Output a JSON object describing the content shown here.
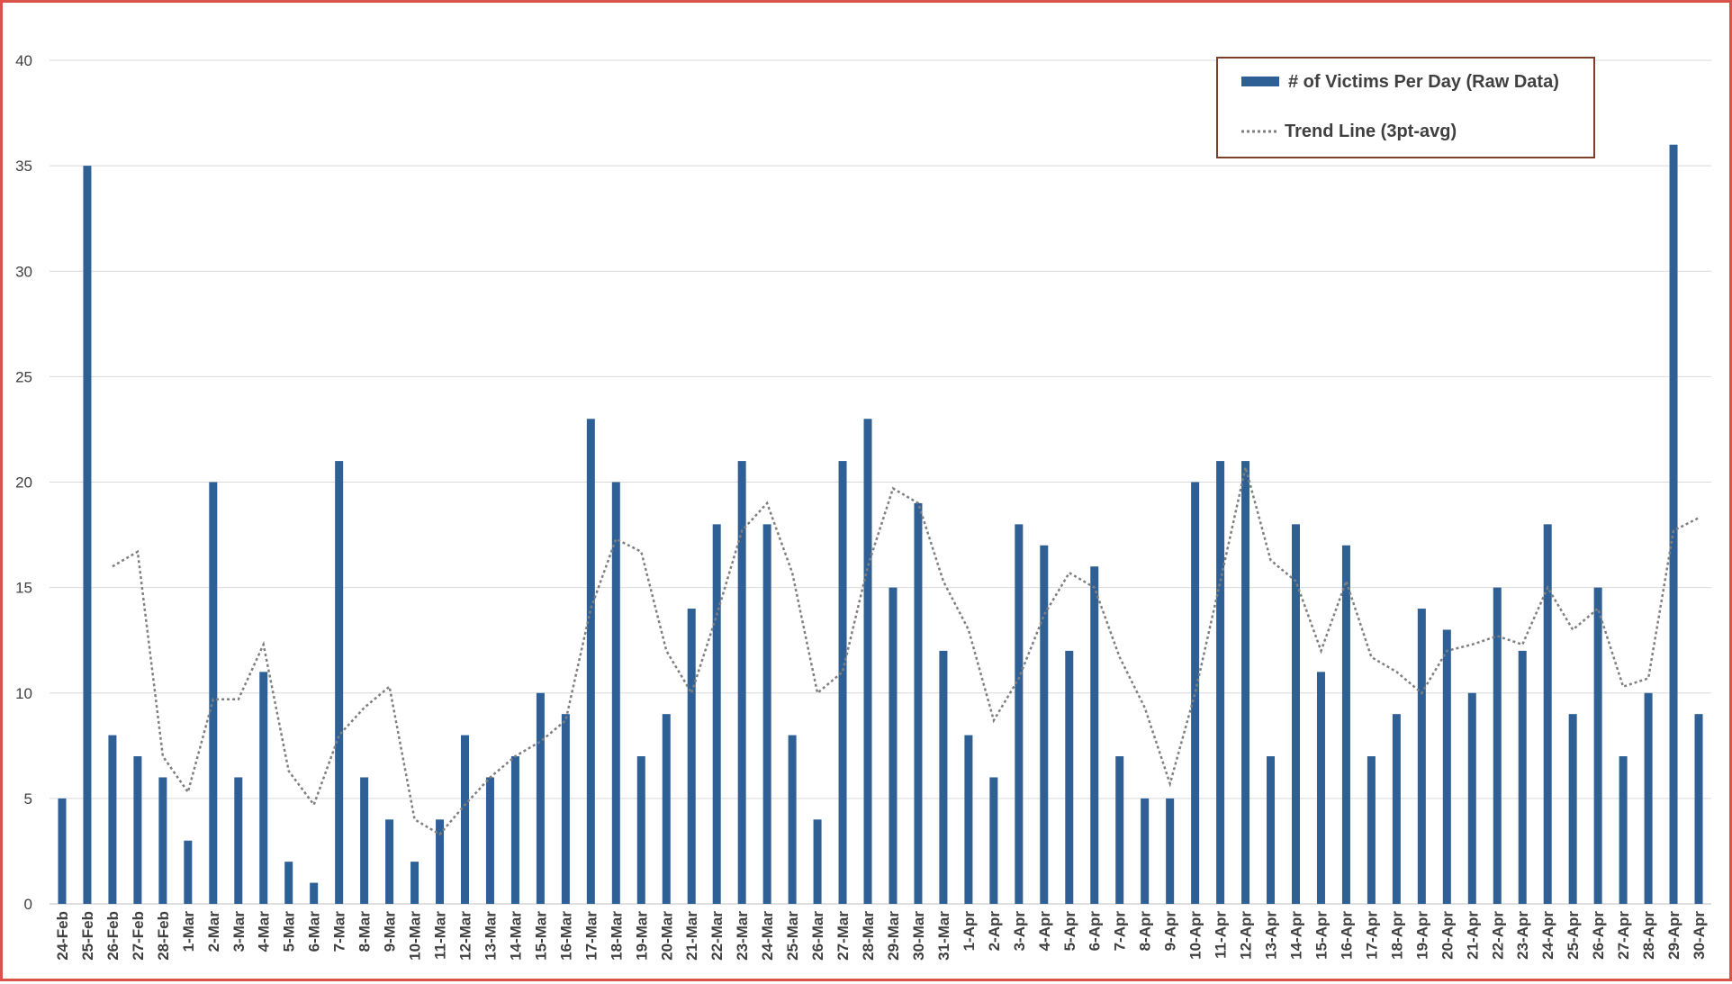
{
  "chart_data": {
    "type": "bar",
    "title": "",
    "xlabel": "",
    "ylabel": "",
    "ylim": [
      0,
      40
    ],
    "yticks": [
      0,
      5,
      10,
      15,
      20,
      25,
      30,
      35,
      40
    ],
    "grid": true,
    "legend_position": "top-right",
    "categories": [
      "24-Feb",
      "25-Feb",
      "26-Feb",
      "27-Feb",
      "28-Feb",
      "1-Mar",
      "2-Mar",
      "3-Mar",
      "4-Mar",
      "5-Mar",
      "6-Mar",
      "7-Mar",
      "8-Mar",
      "9-Mar",
      "10-Mar",
      "11-Mar",
      "12-Mar",
      "13-Mar",
      "14-Mar",
      "15-Mar",
      "16-Mar",
      "17-Mar",
      "18-Mar",
      "19-Mar",
      "20-Mar",
      "21-Mar",
      "22-Mar",
      "23-Mar",
      "24-Mar",
      "25-Mar",
      "26-Mar",
      "27-Mar",
      "28-Mar",
      "29-Mar",
      "30-Mar",
      "31-Mar",
      "1-Apr",
      "2-Apr",
      "3-Apr",
      "4-Apr",
      "5-Apr",
      "6-Apr",
      "7-Apr",
      "8-Apr",
      "9-Apr",
      "10-Apr",
      "11-Apr",
      "12-Apr",
      "13-Apr",
      "14-Apr",
      "15-Apr",
      "16-Apr",
      "17-Apr",
      "18-Apr",
      "19-Apr",
      "20-Apr",
      "21-Apr",
      "22-Apr",
      "23-Apr",
      "24-Apr",
      "25-Apr",
      "26-Apr",
      "27-Apr",
      "28-Apr",
      "29-Apr",
      "30-Apr"
    ],
    "series": [
      {
        "name": "# of Victims Per Day (Raw Data)",
        "type": "bar",
        "color": "#2e6096",
        "values": [
          5,
          35,
          8,
          7,
          6,
          3,
          20,
          6,
          11,
          2,
          1,
          21,
          6,
          4,
          2,
          4,
          8,
          6,
          7,
          10,
          9,
          23,
          20,
          7,
          9,
          14,
          18,
          21,
          18,
          8,
          4,
          21,
          23,
          15,
          19,
          12,
          8,
          6,
          18,
          17,
          12,
          16,
          7,
          5,
          5,
          20,
          21,
          21,
          7,
          18,
          11,
          17,
          7,
          9,
          14,
          13,
          10,
          15,
          12,
          18,
          9,
          15,
          7,
          10,
          36,
          9
        ]
      },
      {
        "name": "Trend Line (3pt-avg)",
        "type": "line",
        "style": "dotted",
        "color": "#7f7f7f",
        "values": [
          null,
          null,
          16,
          16.7,
          7,
          5.3,
          9.7,
          9.7,
          12.3,
          6.3,
          4.7,
          8,
          9.3,
          10.3,
          4,
          3.3,
          4.7,
          6,
          7,
          7.7,
          8.7,
          14,
          17.3,
          16.7,
          12,
          10,
          13.7,
          17.7,
          19,
          15.7,
          10,
          11,
          16,
          19.7,
          19,
          15.3,
          13,
          8.7,
          10.7,
          13.7,
          15.7,
          15,
          11.7,
          9.3,
          5.7,
          10,
          15.3,
          20.7,
          16.3,
          15.3,
          12,
          15.3,
          11.7,
          11,
          10,
          12,
          12.3,
          12.7,
          12.3,
          15,
          13,
          14,
          10.3,
          10.7,
          17.7,
          18.3
        ]
      }
    ]
  }
}
